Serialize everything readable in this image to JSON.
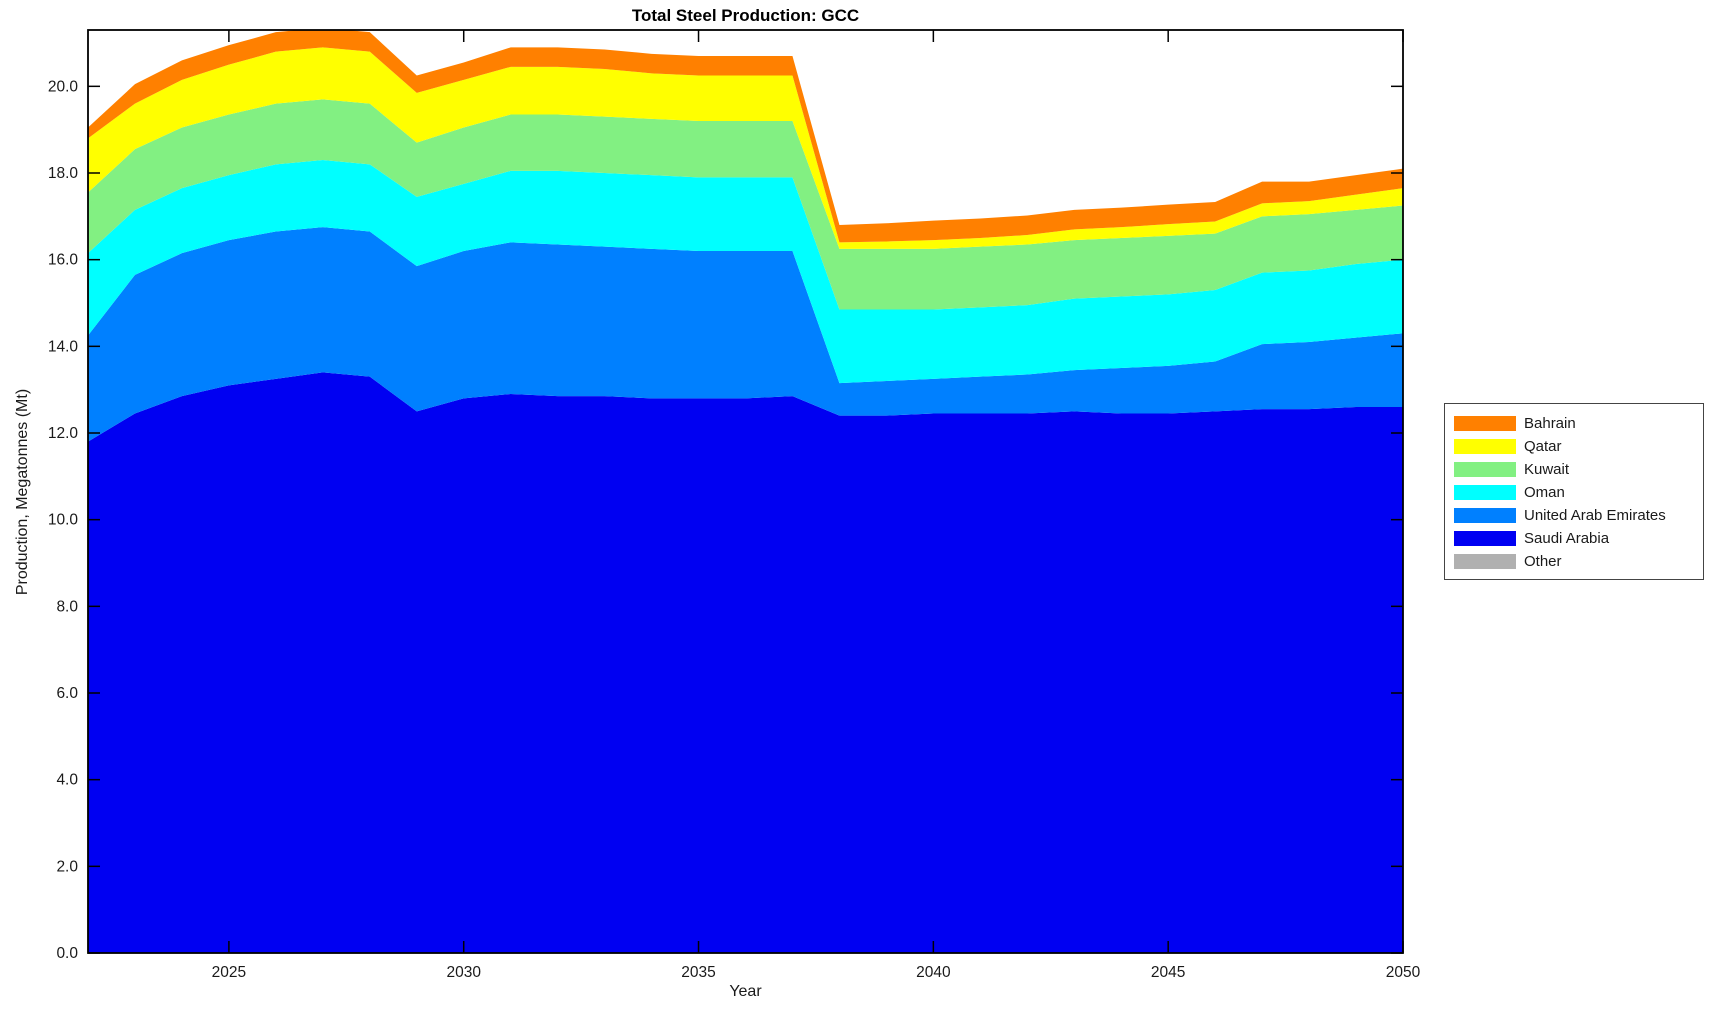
{
  "title": "Total Steel Production: GCC",
  "chart_data": {
    "type": "area",
    "stacked": true,
    "title": "Total Steel Production: GCC",
    "xlabel": "Year",
    "ylabel": "Production, Megatonnes (Mt)",
    "grid": false,
    "legend_position": "right-outside",
    "xlim": [
      2022,
      2050
    ],
    "ylim": [
      0,
      21.3
    ],
    "x_ticks": [
      2025,
      2030,
      2035,
      2040,
      2045,
      2050
    ],
    "y_ticks": [
      0,
      2,
      4,
      6,
      8,
      10,
      12,
      14,
      16,
      18,
      20
    ],
    "y_tick_labels": [
      "0.0",
      "2.0",
      "4.0",
      "6.0",
      "8.0",
      "10.0",
      "12.0",
      "14.0",
      "16.0",
      "18.0",
      "20.0"
    ],
    "x": [
      2022,
      2023,
      2024,
      2025,
      2026,
      2027,
      2028,
      2029,
      2030,
      2031,
      2032,
      2033,
      2034,
      2035,
      2036,
      2037,
      2038,
      2039,
      2040,
      2041,
      2042,
      2043,
      2044,
      2045,
      2046,
      2047,
      2048,
      2049,
      2050
    ],
    "stack_bottom_to_top": [
      "Other",
      "Saudi Arabia",
      "United Arab Emirates",
      "Oman",
      "Kuwait",
      "Qatar",
      "Bahrain"
    ],
    "series": [
      {
        "name": "Bahrain",
        "color": "#FF8000",
        "values": [
          0.25,
          0.45,
          0.45,
          0.45,
          0.45,
          0.45,
          0.45,
          0.4,
          0.4,
          0.45,
          0.45,
          0.45,
          0.45,
          0.45,
          0.45,
          0.45,
          0.4,
          0.42,
          0.45,
          0.45,
          0.45,
          0.45,
          0.45,
          0.45,
          0.45,
          0.5,
          0.45,
          0.45,
          0.45
        ]
      },
      {
        "name": "Qatar",
        "color": "#FFFF00",
        "values": [
          1.25,
          1.05,
          1.1,
          1.15,
          1.2,
          1.2,
          1.2,
          1.15,
          1.1,
          1.1,
          1.1,
          1.1,
          1.05,
          1.05,
          1.05,
          1.05,
          0.15,
          0.17,
          0.2,
          0.2,
          0.22,
          0.25,
          0.25,
          0.27,
          0.28,
          0.3,
          0.3,
          0.35,
          0.4
        ]
      },
      {
        "name": "Kuwait",
        "color": "#82F082",
        "values": [
          1.4,
          1.4,
          1.4,
          1.4,
          1.4,
          1.4,
          1.4,
          1.25,
          1.3,
          1.3,
          1.3,
          1.3,
          1.3,
          1.3,
          1.3,
          1.3,
          1.4,
          1.4,
          1.4,
          1.4,
          1.4,
          1.35,
          1.35,
          1.35,
          1.3,
          1.3,
          1.3,
          1.25,
          1.25
        ]
      },
      {
        "name": "Oman",
        "color": "#00FFFF",
        "values": [
          1.9,
          1.5,
          1.5,
          1.5,
          1.55,
          1.55,
          1.55,
          1.6,
          1.55,
          1.65,
          1.7,
          1.7,
          1.7,
          1.7,
          1.7,
          1.7,
          1.7,
          1.65,
          1.6,
          1.6,
          1.6,
          1.65,
          1.65,
          1.65,
          1.65,
          1.65,
          1.65,
          1.7,
          1.7
        ]
      },
      {
        "name": "United Arab Emirates",
        "color": "#0080FF",
        "values": [
          2.45,
          3.2,
          3.3,
          3.35,
          3.4,
          3.35,
          3.35,
          3.35,
          3.4,
          3.5,
          3.5,
          3.45,
          3.45,
          3.4,
          3.4,
          3.35,
          0.75,
          0.8,
          0.8,
          0.85,
          0.9,
          0.95,
          1.05,
          1.1,
          1.15,
          1.5,
          1.55,
          1.6,
          1.7
        ]
      },
      {
        "name": "Saudi Arabia",
        "color": "#0000F2",
        "values": [
          11.8,
          12.45,
          12.85,
          13.1,
          13.25,
          13.4,
          13.3,
          12.5,
          12.8,
          12.9,
          12.85,
          12.85,
          12.8,
          12.8,
          12.8,
          12.85,
          12.4,
          12.4,
          12.45,
          12.45,
          12.45,
          12.5,
          12.45,
          12.45,
          12.5,
          12.55,
          12.55,
          12.6,
          12.6
        ]
      },
      {
        "name": "Other",
        "color": "#B0B0B0",
        "values": [
          0,
          0,
          0,
          0,
          0,
          0,
          0,
          0,
          0,
          0,
          0,
          0,
          0,
          0,
          0,
          0,
          0,
          0,
          0,
          0,
          0,
          0,
          0,
          0,
          0,
          0,
          0,
          0,
          0
        ]
      }
    ]
  },
  "legend": {
    "entries": [
      "Bahrain",
      "Qatar",
      "Kuwait",
      "Oman",
      "United Arab Emirates",
      "Saudi Arabia",
      "Other"
    ]
  },
  "axis_style": {
    "line_color": "#000000",
    "tick_label_color": "#1a1a1a"
  }
}
